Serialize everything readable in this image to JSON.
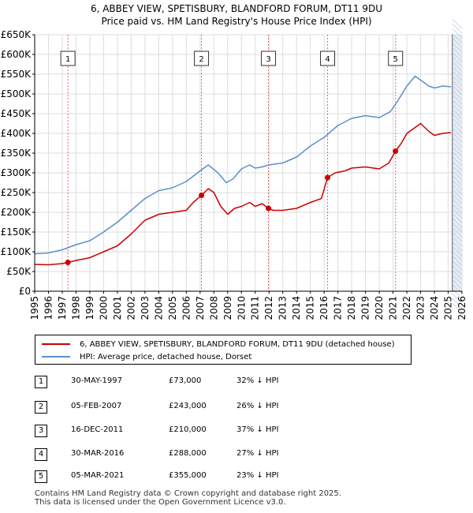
{
  "title_line1": "6, ABBEY VIEW, SPETISBURY, BLANDFORD FORUM, DT11 9DU",
  "title_line2": "Price paid vs. HM Land Registry's House Price Index (HPI)",
  "colors": {
    "property": "#cc0000",
    "hpi": "#5b8fcc",
    "shade": "#dfe7f3",
    "grid": "#dddddd"
  },
  "legend": {
    "property": "6, ABBEY VIEW, SPETISBURY, BLANDFORD FORUM, DT11 9DU (detached house)",
    "hpi": "HPI: Average price, detached house, Dorset"
  },
  "sales": [
    {
      "num": "1",
      "date": "30-MAY-1997",
      "price": "£73,000",
      "hpi": "32% ↓ HPI"
    },
    {
      "num": "2",
      "date": "05-FEB-2007",
      "price": "£243,000",
      "hpi": "26% ↓ HPI"
    },
    {
      "num": "3",
      "date": "16-DEC-2011",
      "price": "£210,000",
      "hpi": "37% ↓ HPI"
    },
    {
      "num": "4",
      "date": "30-MAR-2016",
      "price": "£288,000",
      "hpi": "27% ↓ HPI"
    },
    {
      "num": "5",
      "date": "05-MAR-2021",
      "price": "£355,000",
      "hpi": "23% ↓ HPI"
    }
  ],
  "footer_line1": "Contains HM Land Registry data © Crown copyright and database right 2025.",
  "footer_line2": "This data is licensed under the Open Government Licence v3.0.",
  "chart_data": {
    "type": "line",
    "title": "6, ABBEY VIEW, SPETISBURY, BLANDFORD FORUM, DT11 9DU — Price paid vs. HM Land Registry's House Price Index (HPI)",
    "xlabel": "",
    "ylabel": "",
    "xlim": [
      1995,
      2026
    ],
    "ylim": [
      0,
      650000
    ],
    "x_ticks": [
      1995,
      1996,
      1997,
      1998,
      1999,
      2000,
      2001,
      2002,
      2003,
      2004,
      2005,
      2006,
      2007,
      2008,
      2009,
      2010,
      2011,
      2012,
      2013,
      2014,
      2015,
      2016,
      2017,
      2018,
      2019,
      2020,
      2021,
      2022,
      2023,
      2024,
      2025,
      2026
    ],
    "y_ticks": [
      0,
      50000,
      100000,
      150000,
      200000,
      250000,
      300000,
      350000,
      400000,
      450000,
      500000,
      550000,
      600000,
      650000
    ],
    "y_tick_labels": [
      "£0",
      "£50K",
      "£100K",
      "£150K",
      "£200K",
      "£250K",
      "£300K",
      "£350K",
      "£400K",
      "£450K",
      "£500K",
      "£550K",
      "£600K",
      "£650K"
    ],
    "shaded_region_from": 2025.3,
    "series": [
      {
        "name": "6, ABBEY VIEW, SPETISBURY, BLANDFORD FORUM, DT11 9DU (detached house)",
        "points": [
          [
            1995.0,
            68000
          ],
          [
            1996.0,
            67000
          ],
          [
            1997.0,
            70000
          ],
          [
            1997.41,
            73000
          ],
          [
            1998.0,
            78000
          ],
          [
            1999.0,
            85000
          ],
          [
            2000.0,
            100000
          ],
          [
            2001.0,
            115000
          ],
          [
            2002.0,
            145000
          ],
          [
            2003.0,
            180000
          ],
          [
            2004.0,
            195000
          ],
          [
            2005.0,
            200000
          ],
          [
            2006.0,
            205000
          ],
          [
            2006.5,
            225000
          ],
          [
            2007.1,
            243000
          ],
          [
            2007.6,
            260000
          ],
          [
            2008.0,
            250000
          ],
          [
            2008.5,
            215000
          ],
          [
            2009.0,
            195000
          ],
          [
            2009.5,
            210000
          ],
          [
            2010.0,
            215000
          ],
          [
            2010.6,
            225000
          ],
          [
            2011.0,
            215000
          ],
          [
            2011.5,
            222000
          ],
          [
            2011.96,
            210000
          ],
          [
            2012.3,
            205000
          ],
          [
            2013.0,
            205000
          ],
          [
            2014.0,
            210000
          ],
          [
            2015.0,
            225000
          ],
          [
            2015.8,
            235000
          ],
          [
            2016.25,
            288000
          ],
          [
            2016.8,
            300000
          ],
          [
            2017.5,
            305000
          ],
          [
            2018.0,
            312000
          ],
          [
            2019.0,
            315000
          ],
          [
            2020.0,
            310000
          ],
          [
            2020.7,
            325000
          ],
          [
            2021.18,
            355000
          ],
          [
            2021.6,
            375000
          ],
          [
            2022.0,
            400000
          ],
          [
            2022.6,
            415000
          ],
          [
            2023.0,
            425000
          ],
          [
            2023.6,
            405000
          ],
          [
            2024.0,
            395000
          ],
          [
            2024.6,
            400000
          ],
          [
            2025.2,
            402000
          ]
        ]
      },
      {
        "name": "HPI: Average price, detached house, Dorset",
        "points": [
          [
            1995.0,
            95000
          ],
          [
            1996.0,
            97000
          ],
          [
            1997.0,
            105000
          ],
          [
            1998.0,
            118000
          ],
          [
            1999.0,
            128000
          ],
          [
            2000.0,
            150000
          ],
          [
            2001.0,
            175000
          ],
          [
            2002.0,
            205000
          ],
          [
            2003.0,
            235000
          ],
          [
            2004.0,
            255000
          ],
          [
            2005.0,
            262000
          ],
          [
            2006.0,
            278000
          ],
          [
            2007.0,
            305000
          ],
          [
            2007.6,
            320000
          ],
          [
            2008.3,
            300000
          ],
          [
            2008.9,
            275000
          ],
          [
            2009.4,
            285000
          ],
          [
            2010.0,
            310000
          ],
          [
            2010.6,
            320000
          ],
          [
            2011.0,
            312000
          ],
          [
            2011.5,
            315000
          ],
          [
            2012.0,
            320000
          ],
          [
            2013.0,
            325000
          ],
          [
            2014.0,
            340000
          ],
          [
            2015.0,
            368000
          ],
          [
            2016.0,
            390000
          ],
          [
            2017.0,
            420000
          ],
          [
            2018.0,
            438000
          ],
          [
            2019.0,
            445000
          ],
          [
            2020.0,
            440000
          ],
          [
            2020.8,
            455000
          ],
          [
            2021.3,
            480000
          ],
          [
            2022.0,
            520000
          ],
          [
            2022.6,
            545000
          ],
          [
            2023.0,
            535000
          ],
          [
            2023.6,
            520000
          ],
          [
            2024.0,
            515000
          ],
          [
            2024.6,
            520000
          ],
          [
            2025.2,
            518000
          ]
        ]
      }
    ],
    "sale_markers": [
      {
        "label": "1",
        "x": 1997.41,
        "y": 73000
      },
      {
        "label": "2",
        "x": 2007.1,
        "y": 243000
      },
      {
        "label": "3",
        "x": 2011.96,
        "y": 210000
      },
      {
        "label": "4",
        "x": 2016.25,
        "y": 288000
      },
      {
        "label": "5",
        "x": 2021.18,
        "y": 355000
      }
    ]
  }
}
